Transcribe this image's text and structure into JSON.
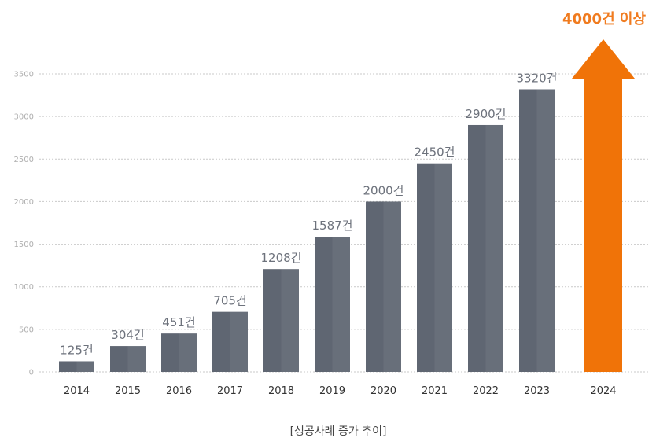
{
  "chart_data": {
    "type": "bar",
    "categories": [
      "2014",
      "2015",
      "2016",
      "2017",
      "2018",
      "2019",
      "2020",
      "2021",
      "2022",
      "2023"
    ],
    "values": [
      125,
      304,
      451,
      705,
      1208,
      1587,
      2000,
      2450,
      2900,
      3320
    ],
    "value_labels": [
      "125건",
      "304건",
      "451건",
      "705건",
      "1208건",
      "1587건",
      "2000건",
      "2450건",
      "2900건",
      "3320건"
    ],
    "yticks": [
      "0",
      "500",
      "1000",
      "1500",
      "2000",
      "2500",
      "3000",
      "3500"
    ],
    "ylim": [
      0,
      3500
    ],
    "grid": true,
    "projection": {
      "category": "2024",
      "label": "4000건 이상",
      "color": "#f07308"
    },
    "bar_color": "#5f6672",
    "caption": "[성공사례 증가 추이]"
  }
}
